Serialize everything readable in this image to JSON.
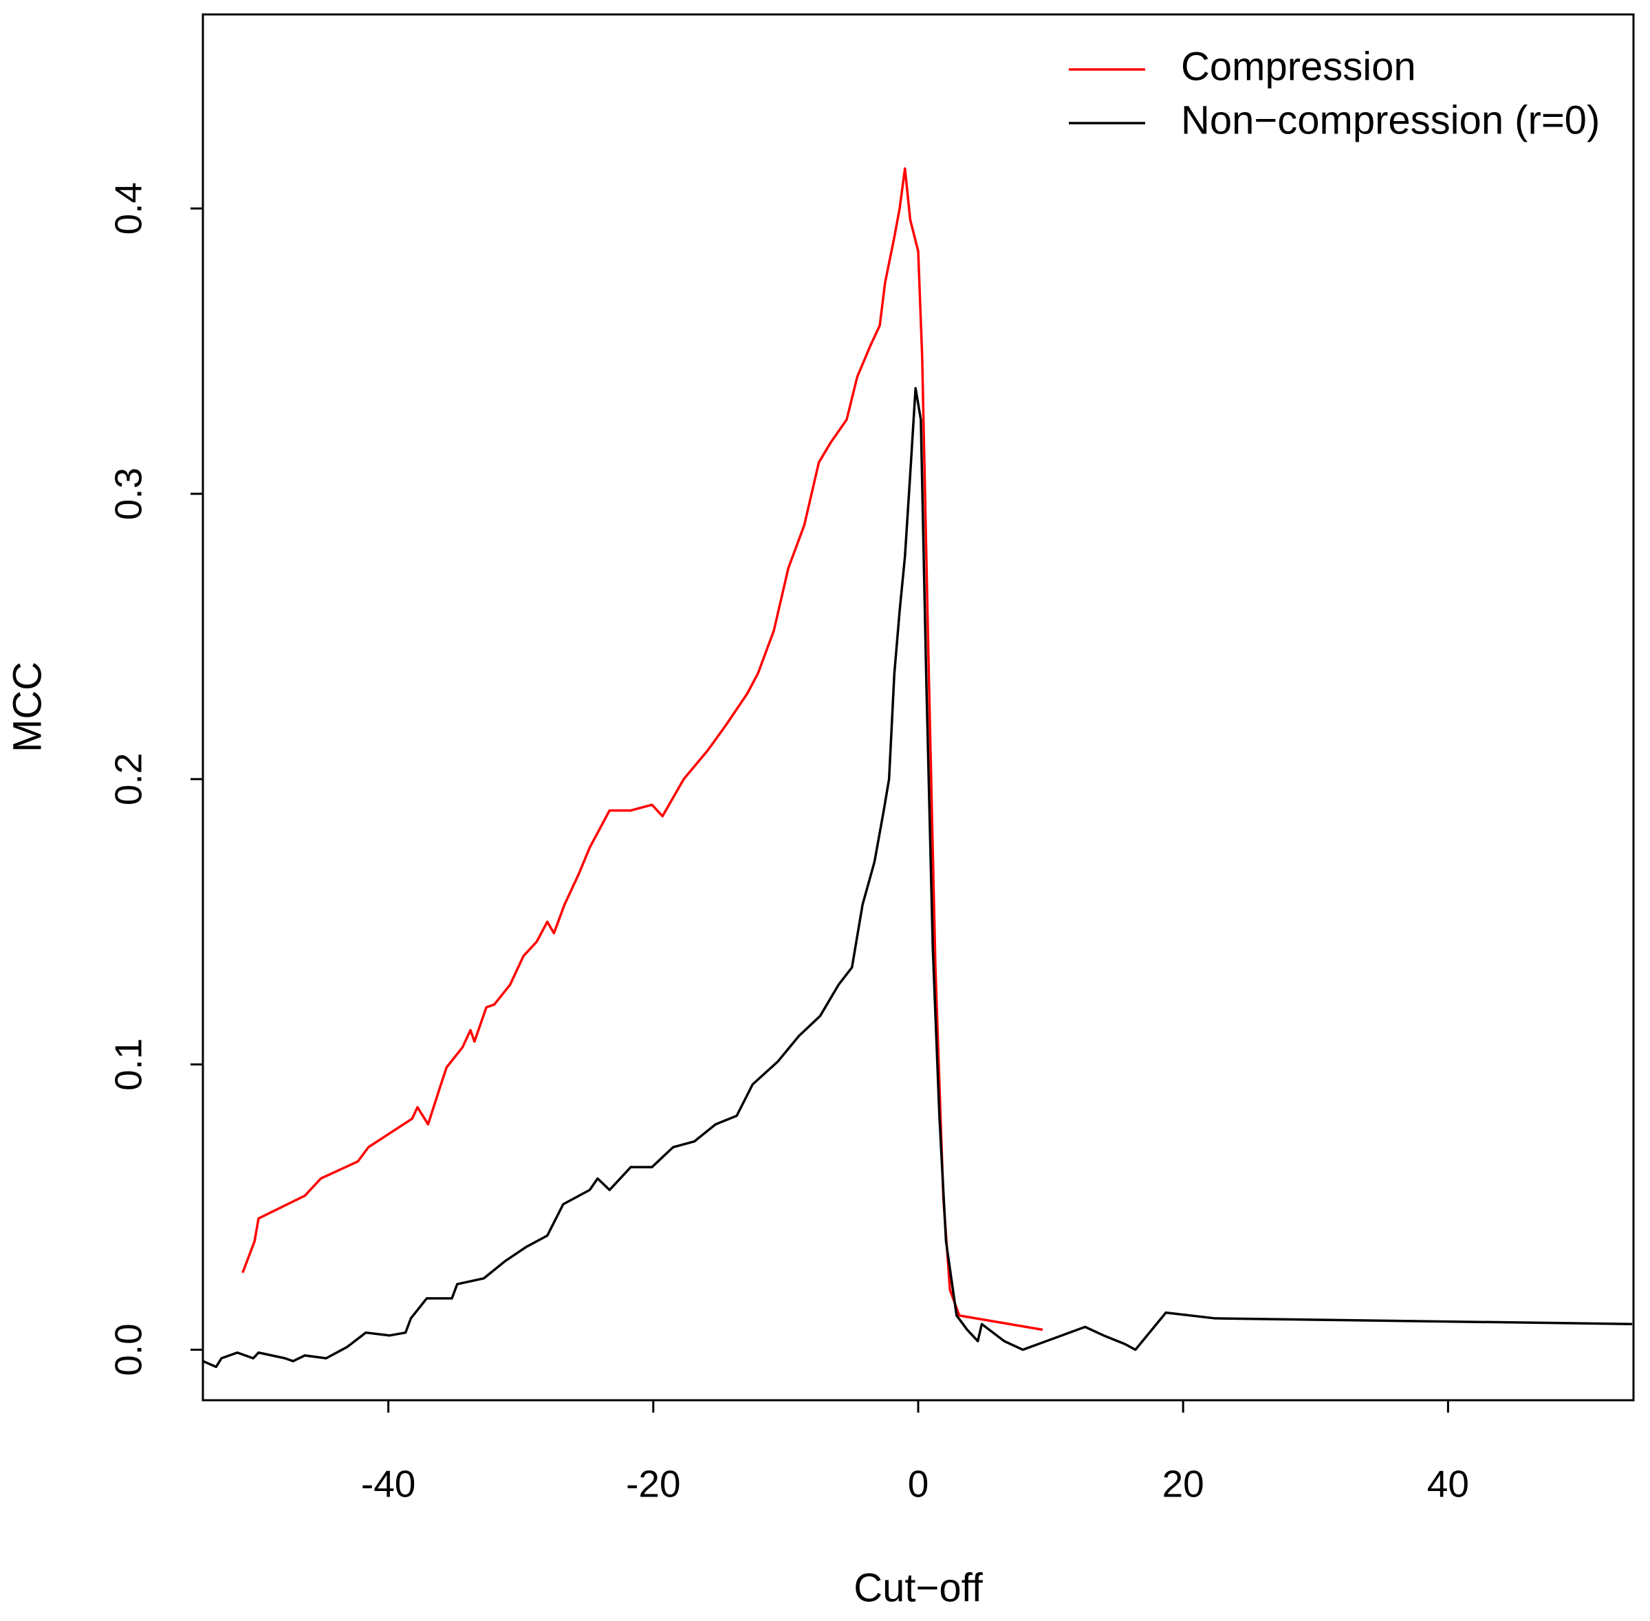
{
  "chart_data": {
    "type": "line",
    "x_label": "Cut−off",
    "y_label": "MCC",
    "xlim": [
      -54,
      54
    ],
    "ylim": [
      -0.0177,
      0.468
    ],
    "xticks": [
      -40,
      -20,
      0,
      20,
      40
    ],
    "yticks": [
      {
        "value": 0,
        "label": "0.0"
      },
      0.1,
      0.2,
      0.3,
      0.4
    ],
    "legend_position": "topright",
    "series": [
      {
        "name": "Compression",
        "color": "#ff0000",
        "x": [
          -51.0,
          -50.1,
          -49.8,
          -46.3,
          -45.1,
          -42.3,
          -41.5,
          -38.2,
          -37.8,
          -37.0,
          -36.1,
          -35.6,
          -34.4,
          -33.8,
          -33.5,
          -32.6,
          -32.0,
          -30.8,
          -29.8,
          -28.8,
          -28.0,
          -27.5,
          -26.7,
          -25.6,
          -24.8,
          -23.3,
          -21.7,
          -20.1,
          -19.3,
          -17.7,
          -15.9,
          -14.5,
          -12.9,
          -12.1,
          -10.9,
          -9.8,
          -8.6,
          -7.5,
          -6.6,
          -5.4,
          -4.6,
          -3.6,
          -2.9,
          -2.5,
          -1.8,
          -1.4,
          -1.0,
          -0.6,
          0.0,
          0.3,
          0.8,
          1.3,
          1.9,
          2.4,
          3.1,
          9.4
        ],
        "values": [
          0.027,
          0.038,
          0.046,
          0.054,
          0.06,
          0.066,
          0.071,
          0.081,
          0.085,
          0.079,
          0.092,
          0.099,
          0.106,
          0.112,
          0.108,
          0.12,
          0.121,
          0.128,
          0.138,
          0.143,
          0.15,
          0.146,
          0.156,
          0.167,
          0.176,
          0.189,
          0.189,
          0.191,
          0.187,
          0.2,
          0.21,
          0.219,
          0.23,
          0.237,
          0.252,
          0.274,
          0.289,
          0.311,
          0.318,
          0.326,
          0.341,
          0.352,
          0.359,
          0.374,
          0.39,
          0.4,
          0.414,
          0.396,
          0.385,
          0.348,
          0.237,
          0.134,
          0.053,
          0.021,
          0.012,
          0.007
        ]
      },
      {
        "name": "Non−compression (r=0)",
        "color": "#000000",
        "x": [
          -54.0,
          -53.0,
          -52.6,
          -51.4,
          -50.2,
          -49.8,
          -47.8,
          -47.2,
          -46.3,
          -44.7,
          -43.1,
          -41.7,
          -39.9,
          -38.7,
          -38.3,
          -37.1,
          -35.2,
          -34.8,
          -32.8,
          -31.2,
          -29.6,
          -28.0,
          -26.8,
          -24.8,
          -24.2,
          -23.3,
          -21.7,
          -20.1,
          -18.5,
          -16.9,
          -15.3,
          -13.7,
          -12.5,
          -10.6,
          -9.0,
          -7.4,
          -6.0,
          -5.0,
          -4.2,
          -3.3,
          -2.6,
          -2.2,
          -1.8,
          -1.4,
          -1.0,
          -0.6,
          -0.2,
          0.2,
          0.6,
          1.1,
          1.6,
          2.1,
          2.9,
          3.7,
          4.5,
          4.8,
          6.5,
          7.9,
          12.6,
          14.0,
          15.6,
          16.4,
          18.7,
          22.4,
          53.9
        ],
        "values": [
          -0.004,
          -0.006,
          -0.003,
          -0.001,
          -0.003,
          -0.001,
          -0.003,
          -0.004,
          -0.002,
          -0.003,
          0.001,
          0.006,
          0.005,
          0.006,
          0.011,
          0.018,
          0.018,
          0.023,
          0.025,
          0.031,
          0.036,
          0.04,
          0.051,
          0.056,
          0.06,
          0.056,
          0.064,
          0.064,
          0.071,
          0.073,
          0.079,
          0.082,
          0.093,
          0.101,
          0.11,
          0.117,
          0.128,
          0.134,
          0.156,
          0.171,
          0.189,
          0.2,
          0.237,
          0.259,
          0.278,
          0.307,
          0.337,
          0.326,
          0.237,
          0.141,
          0.082,
          0.038,
          0.012,
          0.007,
          0.003,
          0.009,
          0.003,
          0.0,
          0.008,
          0.005,
          0.002,
          0.0,
          0.013,
          0.011,
          0.009
        ]
      }
    ]
  }
}
